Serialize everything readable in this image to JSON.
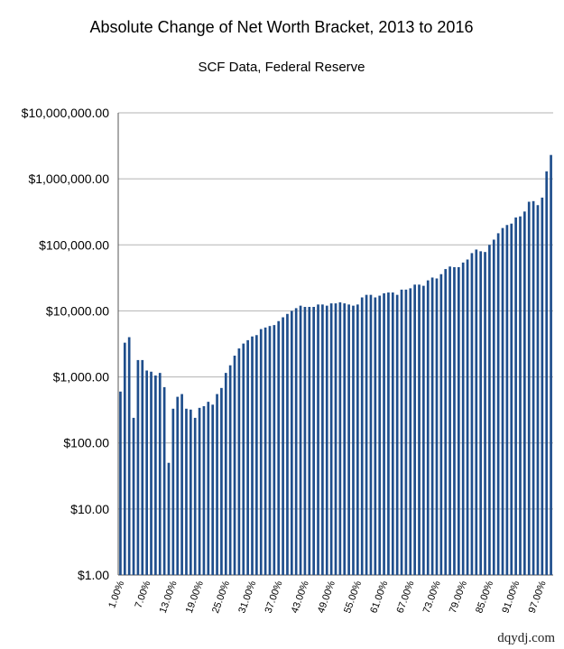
{
  "chart_data": {
    "type": "bar",
    "title": "Absolute Change of Net Worth Bracket, 2013 to 2016",
    "subtitle": "SCF Data, Federal Reserve",
    "xlabel": "",
    "ylabel": "",
    "y_scale": "log",
    "ylim": [
      1,
      10000000
    ],
    "y_tick_labels": [
      "$1.00",
      "$10.00",
      "$100.00",
      "$1,000.00",
      "$10,000.00",
      "$100,000.00",
      "$1,000,000.00",
      "$10,000,000.00"
    ],
    "x_tick_labels": [
      "1.00%",
      "7.00%",
      "13.00%",
      "19.00%",
      "25.00%",
      "31.00%",
      "37.00%",
      "43.00%",
      "49.00%",
      "55.00%",
      "61.00%",
      "67.00%",
      "73.00%",
      "79.00%",
      "85.00%",
      "91.00%",
      "97.00%"
    ],
    "grid": "horizontal",
    "legend": "none",
    "bar_color": "#1f4e8c",
    "categories": [
      "1%",
      "2%",
      "3%",
      "4%",
      "5%",
      "6%",
      "7%",
      "8%",
      "9%",
      "10%",
      "11%",
      "12%",
      "13%",
      "14%",
      "15%",
      "16%",
      "17%",
      "18%",
      "19%",
      "20%",
      "21%",
      "22%",
      "23%",
      "24%",
      "25%",
      "26%",
      "27%",
      "28%",
      "29%",
      "30%",
      "31%",
      "32%",
      "33%",
      "34%",
      "35%",
      "36%",
      "37%",
      "38%",
      "39%",
      "40%",
      "41%",
      "42%",
      "43%",
      "44%",
      "45%",
      "46%",
      "47%",
      "48%",
      "49%",
      "50%",
      "51%",
      "52%",
      "53%",
      "54%",
      "55%",
      "56%",
      "57%",
      "58%",
      "59%",
      "60%",
      "61%",
      "62%",
      "63%",
      "64%",
      "65%",
      "66%",
      "67%",
      "68%",
      "69%",
      "70%",
      "71%",
      "72%",
      "73%",
      "74%",
      "75%",
      "76%",
      "77%",
      "78%",
      "79%",
      "80%",
      "81%",
      "82%",
      "83%",
      "84%",
      "85%",
      "86%",
      "87%",
      "88%",
      "89%",
      "90%",
      "91%",
      "92%",
      "93%",
      "94%",
      "95%",
      "96%",
      "97%",
      "98%",
      "99%"
    ],
    "values": [
      600,
      3300,
      4000,
      240,
      1800,
      1800,
      1250,
      1200,
      1050,
      1150,
      700,
      50,
      330,
      500,
      550,
      330,
      320,
      240,
      340,
      360,
      420,
      380,
      550,
      680,
      1150,
      1500,
      2100,
      2700,
      3200,
      3600,
      4100,
      4300,
      5300,
      5600,
      5900,
      6100,
      7000,
      8000,
      9000,
      10000,
      11000,
      12000,
      11500,
      11500,
      11500,
      12500,
      12500,
      12000,
      13000,
      13000,
      13500,
      13000,
      12500,
      12000,
      12500,
      16000,
      17500,
      17500,
      16000,
      17000,
      18500,
      19000,
      19000,
      17500,
      21000,
      21000,
      22000,
      25000,
      25000,
      24000,
      29000,
      32000,
      31000,
      36000,
      43000,
      47000,
      46000,
      46000,
      54000,
      60000,
      75000,
      85000,
      80000,
      78000,
      100000,
      120000,
      150000,
      180000,
      200000,
      210000,
      260000,
      270000,
      320000,
      450000,
      460000,
      400000,
      520000,
      1300000,
      2300000
    ]
  },
  "watermark": "dqydj.com"
}
